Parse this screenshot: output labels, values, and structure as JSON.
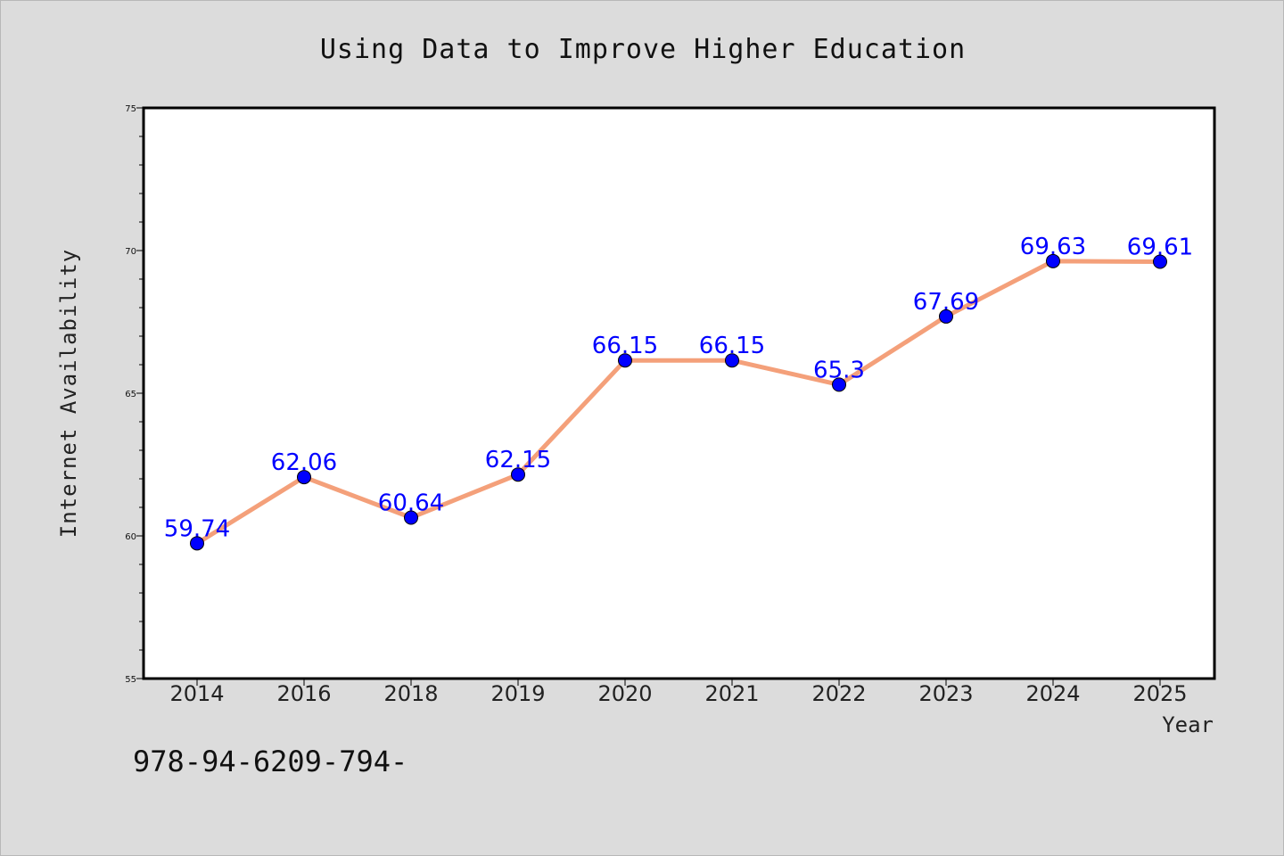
{
  "footnote": "978-94-6209-794-",
  "colors": {
    "background": "#dcdcdc",
    "plot_background": "#ffffff",
    "line": "#f4a07a",
    "marker": "#0000ff",
    "data_label": "#0000ff"
  },
  "chart_data": {
    "type": "line",
    "title": "Using Data to Improve Higher Education",
    "xlabel": "Year",
    "ylabel": "Internet Availability",
    "categories": [
      "2014",
      "2016",
      "2018",
      "2019",
      "2020",
      "2021",
      "2022",
      "2023",
      "2024",
      "2025"
    ],
    "series": [
      {
        "values": [
          59.74,
          62.06,
          60.64,
          62.15,
          66.15,
          66.15,
          65.3,
          67.69,
          69.63,
          69.61
        ],
        "data_labels": [
          "59.74",
          "62.06",
          "60.64",
          "62.15",
          "66.15",
          "66.15",
          "65.3",
          "67.69",
          "69.63",
          "69.61"
        ]
      }
    ],
    "ylim": [
      55,
      75
    ],
    "yticks": [
      "55",
      "60",
      "65",
      "70",
      "75"
    ],
    "grid": false,
    "legend": "none"
  }
}
